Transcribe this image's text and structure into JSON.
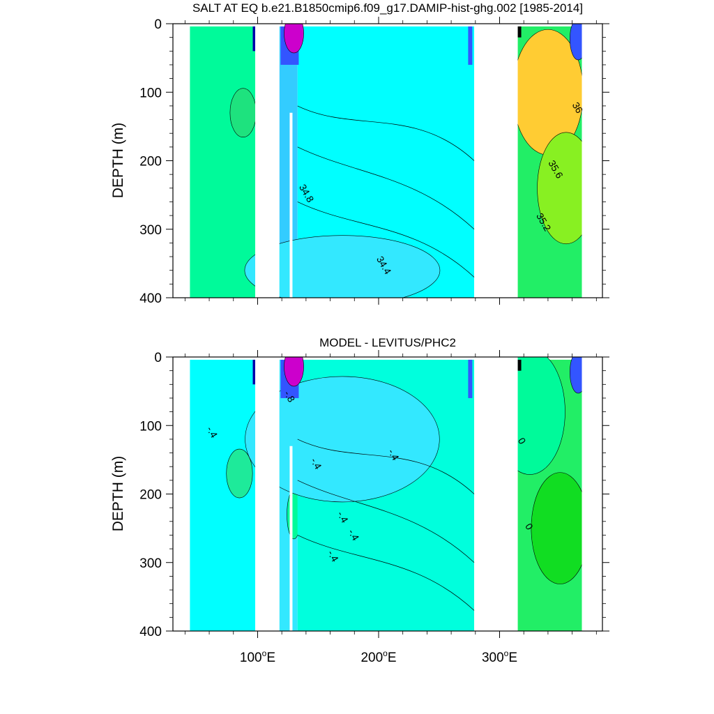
{
  "chart_data": [
    {
      "type": "heatmap",
      "title": "SALT AT EQ b.e21.B1850cmip6.f09_g17.DAMIP-hist-ghg.002 [1985-2014]",
      "ylabel": "DEPTH (m)",
      "xlabel": "",
      "xlim": [
        30,
        385
      ],
      "ylim": [
        400,
        0
      ],
      "y_ticks": [
        0,
        100,
        200,
        300,
        400
      ],
      "y_tick_labels": [
        "0",
        "100",
        "200",
        "300",
        "400"
      ],
      "x_ticks": [
        100,
        200,
        300
      ],
      "x_tick_labels": [
        "100",
        "200",
        "300"
      ],
      "x_tick_unit": "E",
      "contour_labels": [
        {
          "text": "36",
          "x": 362,
          "y": 125
        },
        {
          "text": "35.6",
          "x": 344,
          "y": 215
        },
        {
          "text": "35.2",
          "x": 334,
          "y": 292
        },
        {
          "text": "34.8",
          "x": 138,
          "y": 250
        },
        {
          "text": "34.4",
          "x": 202,
          "y": 355
        }
      ],
      "bands": [
        {
          "x": [
            44,
            98
          ],
          "color": "#00fa9a",
          "patch": "#1ee27e",
          "patch_at": [
            88,
            130
          ]
        },
        {
          "x": [
            118,
            133
          ],
          "color": "#33ccff",
          "patch": "#1ee27e",
          "patch_at": [
            142,
            195
          ]
        },
        {
          "x": [
            133,
            279
          ],
          "color": "#00ffff",
          "lower": "#33e8ff",
          "lower_at": [
            170,
            360
          ]
        },
        {
          "x": [
            315,
            368
          ],
          "color": "#22ee66",
          "upper": "#ffcc33",
          "upper_at": [
            340,
            100
          ],
          "mid": "#88f022",
          "mid_at": [
            355,
            240
          ]
        }
      ],
      "colors": {
        "surface_purple": "#cc00cc",
        "surface_blue": "#3355ff",
        "surface_dark": "#0000aa"
      }
    },
    {
      "type": "heatmap",
      "title": "MODEL - LEVITUS/PHC2",
      "ylabel": "DEPTH (m)",
      "xlabel": "",
      "xlim": [
        30,
        385
      ],
      "ylim": [
        400,
        0
      ],
      "y_ticks": [
        0,
        100,
        200,
        300,
        400
      ],
      "y_tick_labels": [
        "0",
        "100",
        "200",
        "300",
        "400"
      ],
      "x_ticks": [
        100,
        200,
        300
      ],
      "x_tick_labels": [
        "100",
        "200",
        "300"
      ],
      "x_tick_unit": "E",
      "contour_labels": [
        {
          "text": "-.8",
          "x": 124,
          "y": 60
        },
        {
          "text": "-.4",
          "x": 60,
          "y": 112
        },
        {
          "text": "-.4",
          "x": 146,
          "y": 158
        },
        {
          "text": "-.4",
          "x": 210,
          "y": 145
        },
        {
          "text": "-.4",
          "x": 168,
          "y": 236
        },
        {
          "text": "-.4",
          "x": 177,
          "y": 262
        },
        {
          "text": "-.4",
          "x": 160,
          "y": 293
        },
        {
          "text": "0",
          "x": 316,
          "y": 125
        },
        {
          "text": "0",
          "x": 322,
          "y": 250
        }
      ],
      "bands": [
        {
          "x": [
            44,
            98
          ],
          "color": "#00ffff",
          "patch": "#1eea9a",
          "patch_at": [
            85,
            170
          ]
        },
        {
          "x": [
            118,
            133
          ],
          "color": "#33e8ff",
          "patch": "#00fa9a",
          "patch_at": [
            130,
            230
          ]
        },
        {
          "x": [
            133,
            279
          ],
          "color": "#00ffdd",
          "upper": "#33e8ff",
          "upper_at": [
            170,
            120
          ]
        },
        {
          "x": [
            315,
            368
          ],
          "color": "#22ee66",
          "upper": "#00fa9a",
          "upper_at": [
            325,
            80
          ],
          "mid": "#11dd22",
          "mid_at": [
            350,
            250
          ]
        }
      ],
      "colors": {
        "surface_purple": "#cc00cc",
        "surface_blue": "#3355ff",
        "surface_dark": "#0000aa"
      }
    }
  ]
}
